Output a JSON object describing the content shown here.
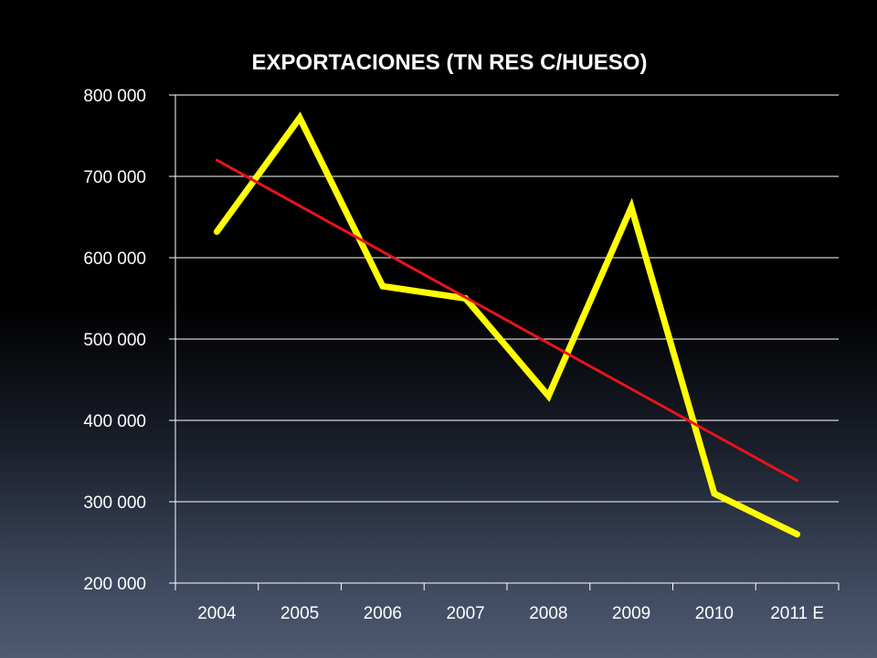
{
  "chart_data": {
    "type": "line",
    "title": "EXPORTACIONES  (TN RES C/HUESO)",
    "categories": [
      "2004",
      "2005",
      "2006",
      "2007",
      "2008",
      "2009",
      "2010",
      "2011 E"
    ],
    "y_tick_labels": [
      "800 000",
      "700 000",
      "600 000",
      "500 000",
      "400 000",
      "300 000",
      "200 000"
    ],
    "ylim": [
      200000,
      800000
    ],
    "y_ticks": [
      800000,
      700000,
      600000,
      500000,
      400000,
      300000,
      200000
    ],
    "grid": true,
    "series": [
      {
        "values": [
          632000,
          772000,
          565000,
          550000,
          430000,
          662000,
          310000,
          260000
        ],
        "color": "#ffff00"
      }
    ],
    "trendline": {
      "type": "linear",
      "start": 720000,
      "end": 326000,
      "color": "#e8141b"
    },
    "colors": {
      "axis": "#ffffff",
      "grid": "#ffffff",
      "text": "#ffffff"
    }
  }
}
